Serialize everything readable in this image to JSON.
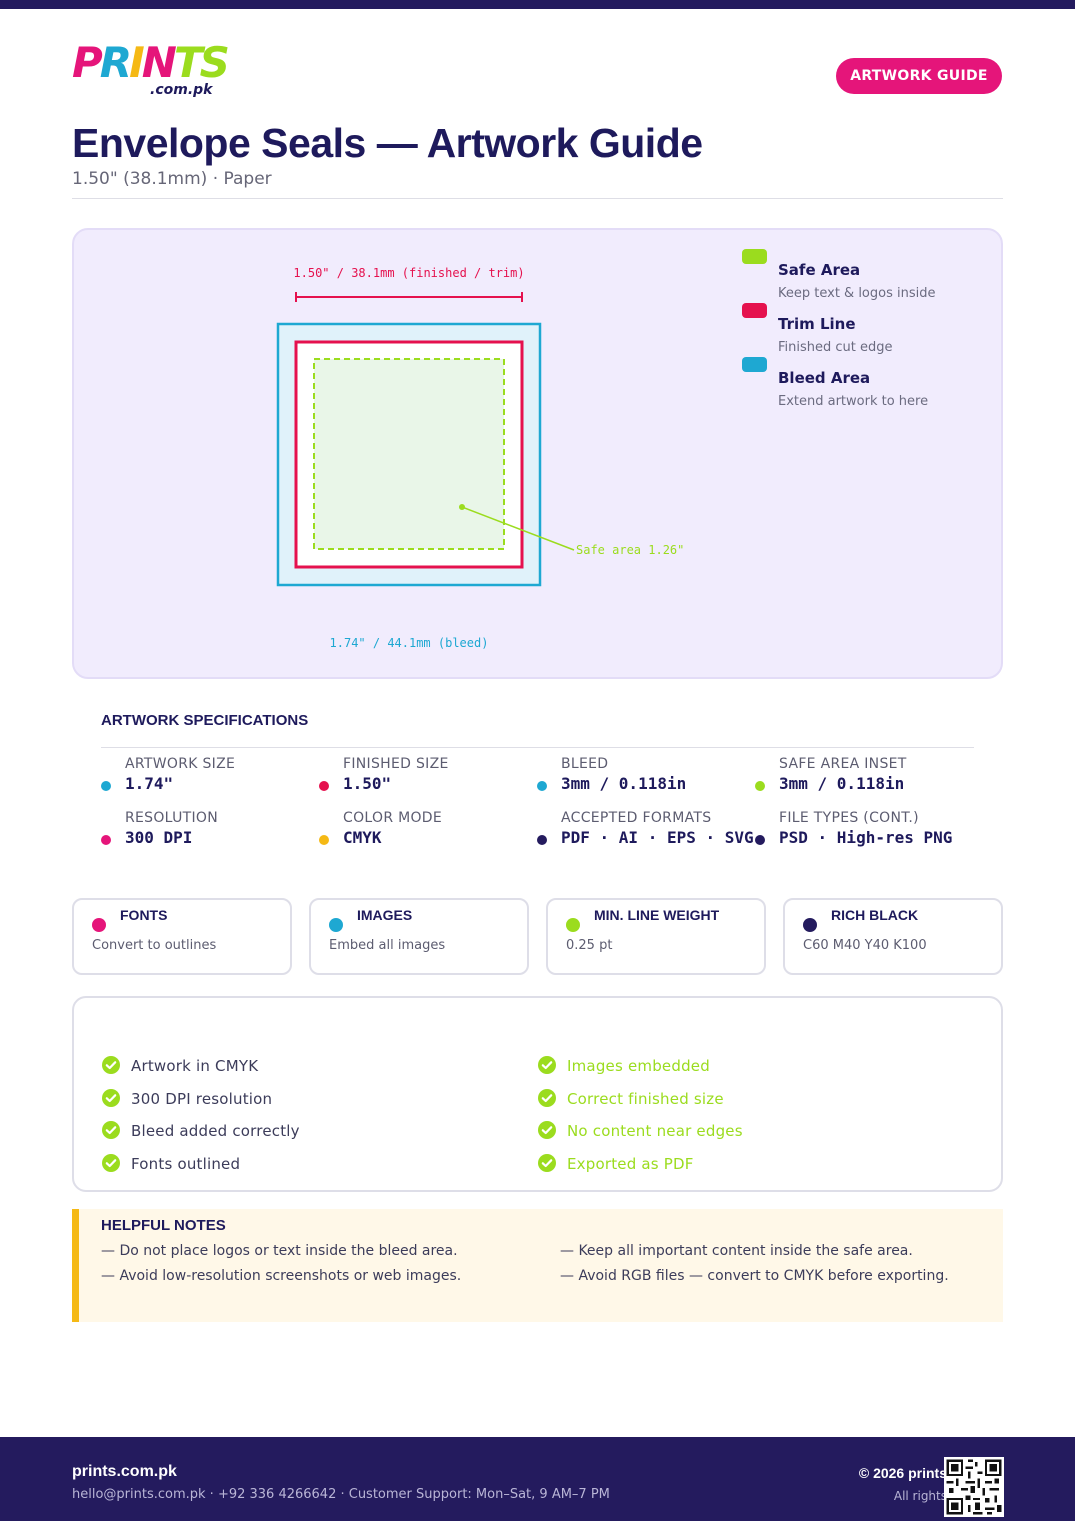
{
  "header": {
    "logo_text": "PRINTS",
    "logo_sub": ".com.pk",
    "badge": "ARTWORK GUIDE",
    "title": "Envelope Seals — Artwork Guide",
    "subtitle": "1.50\" (38.1mm) · Paper"
  },
  "diagram": {
    "trim_dimension": "1.50\" / 38.1mm (finished / trim)",
    "bleed_dimension": "1.74\" / 44.1mm (bleed)",
    "safe_callout": "Safe area 1.26\"",
    "legend": [
      {
        "title": "Safe Area",
        "desc": "Keep text & logos inside",
        "color": "#9bdc1e"
      },
      {
        "title": "Trim Line",
        "desc": "Finished cut edge",
        "color": "#e5114e"
      },
      {
        "title": "Bleed Area",
        "desc": "Extend artwork to here",
        "color": "#1ea8d2"
      }
    ]
  },
  "specs": {
    "heading": "ARTWORK SPECIFICATIONS",
    "items": [
      {
        "label": "ARTWORK SIZE",
        "value": "1.74\"",
        "color": "#1ea8d2"
      },
      {
        "label": "FINISHED SIZE",
        "value": "1.50\"",
        "color": "#e5114e"
      },
      {
        "label": "BLEED",
        "value": "3mm / 0.118in",
        "color": "#1ea8d2"
      },
      {
        "label": "SAFE AREA INSET",
        "value": "3mm / 0.118in",
        "color": "#9bdc1e"
      },
      {
        "label": "RESOLUTION",
        "value": "300 DPI",
        "color": "#e5157a"
      },
      {
        "label": "COLOR MODE",
        "value": "CMYK",
        "color": "#f5b915"
      },
      {
        "label": "ACCEPTED FORMATS",
        "value": "PDF · AI · EPS · SVG",
        "color": "#241b5e"
      },
      {
        "label": "FILE TYPES (CONT.)",
        "value": "PSD · High-res PNG",
        "color": "#241b5e"
      }
    ]
  },
  "info_cards": [
    {
      "title": "FONTS",
      "desc": "Convert to outlines",
      "color": "#e5157a"
    },
    {
      "title": "IMAGES",
      "desc": "Embed all images",
      "color": "#1ea8d2"
    },
    {
      "title": "MIN. LINE WEIGHT",
      "desc": "0.25 pt",
      "color": "#9bdc1e"
    },
    {
      "title": "RICH BLACK",
      "desc": "C60 M40 Y40 K100",
      "color": "#241b5e"
    }
  ],
  "checklist": {
    "left": [
      "Artwork in CMYK",
      "300 DPI resolution",
      "Bleed added correctly",
      "Fonts outlined"
    ],
    "right": [
      "Images embedded",
      "Correct finished size",
      "No content near edges",
      "Exported as PDF"
    ]
  },
  "notes": {
    "heading": "HELPFUL NOTES",
    "left": [
      "— Do not place logos or text inside the bleed area.",
      "— Avoid low-resolution screenshots or web images."
    ],
    "right": [
      "— Keep all important content inside the safe area.",
      "— Avoid RGB files — convert to CMYK before exporting."
    ]
  },
  "footer": {
    "brand": "prints.com.pk",
    "contact": "hello@prints.com.pk · +92 336 4266642 · Customer Support: Mon–Sat, 9 AM–7 PM",
    "copyright": "© 2026 prints",
    "rights": "All rights"
  }
}
